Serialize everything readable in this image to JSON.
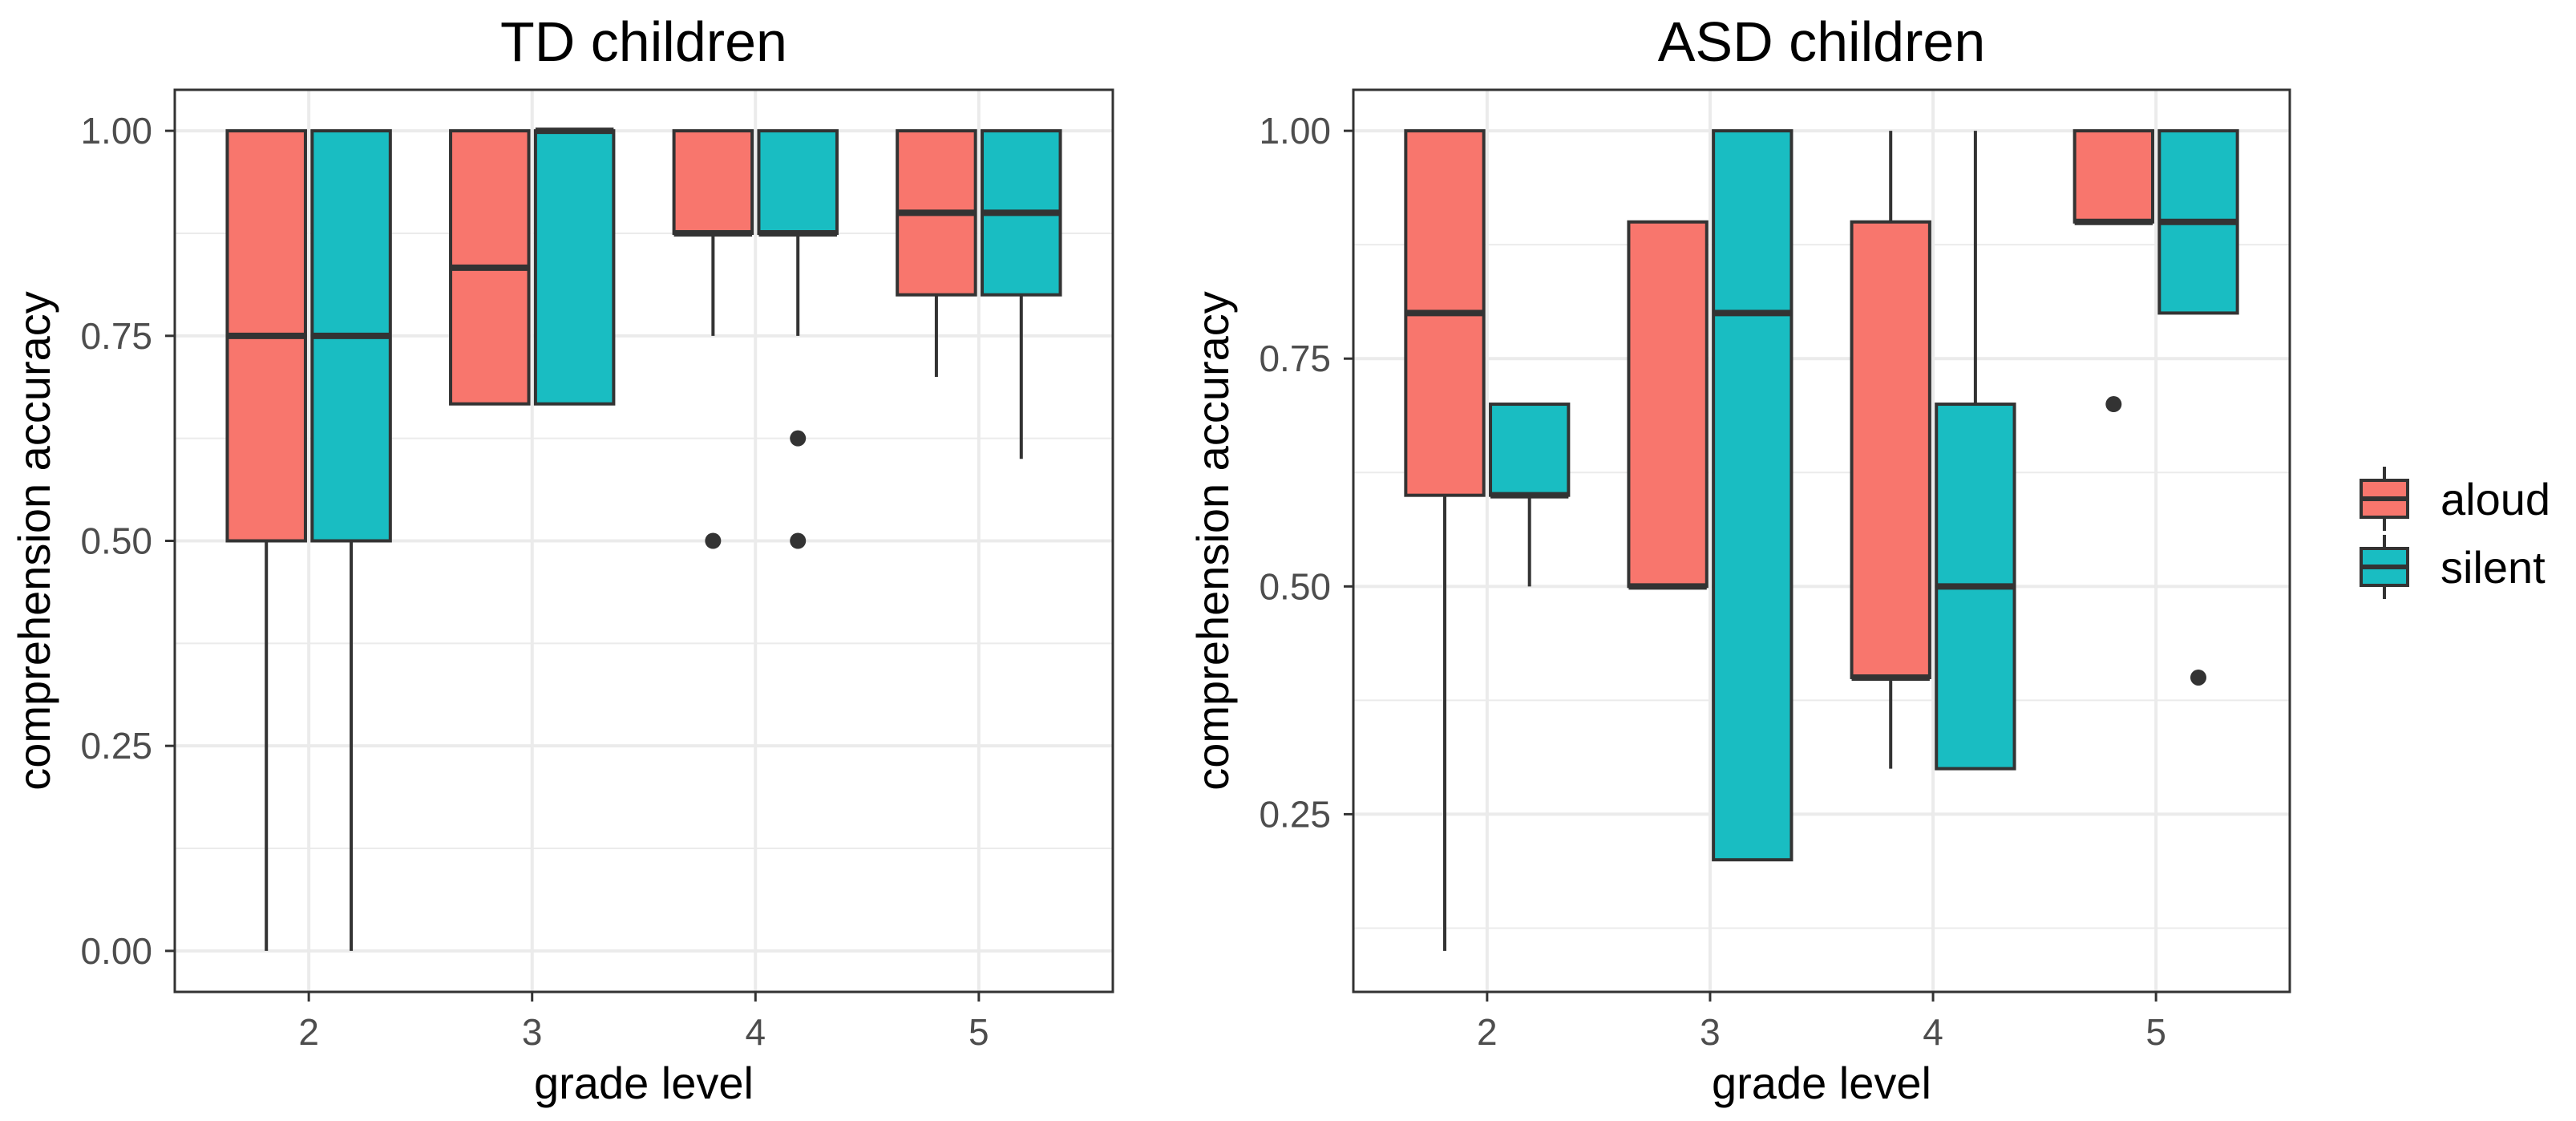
{
  "chart_data": [
    {
      "type": "box",
      "title": "TD children",
      "xlabel": "grade level",
      "ylabel": "comprehension accuracy",
      "categories": [
        "2",
        "3",
        "4",
        "5"
      ],
      "ylim": [
        -0.05,
        1.05
      ],
      "yticks": [
        0.0,
        0.25,
        0.5,
        0.75,
        1.0
      ],
      "ytick_labels": [
        "0.00",
        "0.25",
        "0.50",
        "0.75",
        "1.00"
      ],
      "series": [
        {
          "name": "aloud",
          "color": "#F8766D",
          "boxes": [
            {
              "grade": "2",
              "lower_whisker": 0.0,
              "q1": 0.5,
              "median": 0.75,
              "q3": 1.0,
              "upper_whisker": 1.0,
              "outliers": []
            },
            {
              "grade": "3",
              "lower_whisker": 0.667,
              "q1": 0.667,
              "median": 0.833,
              "q3": 1.0,
              "upper_whisker": 1.0,
              "outliers": []
            },
            {
              "grade": "4",
              "lower_whisker": 0.75,
              "q1": 0.875,
              "median": 0.875,
              "q3": 1.0,
              "upper_whisker": 1.0,
              "outliers": [
                0.5
              ]
            },
            {
              "grade": "5",
              "lower_whisker": 0.7,
              "q1": 0.8,
              "median": 0.9,
              "q3": 1.0,
              "upper_whisker": 1.0,
              "outliers": []
            }
          ]
        },
        {
          "name": "silent",
          "color": "#19BDC2",
          "boxes": [
            {
              "grade": "2",
              "lower_whisker": 0.0,
              "q1": 0.5,
              "median": 0.75,
              "q3": 1.0,
              "upper_whisker": 1.0,
              "outliers": []
            },
            {
              "grade": "3",
              "lower_whisker": 0.667,
              "q1": 0.667,
              "median": 1.0,
              "q3": 1.0,
              "upper_whisker": 1.0,
              "outliers": []
            },
            {
              "grade": "4",
              "lower_whisker": 0.75,
              "q1": 0.875,
              "median": 0.875,
              "q3": 1.0,
              "upper_whisker": 1.0,
              "outliers": [
                0.625,
                0.5
              ]
            },
            {
              "grade": "5",
              "lower_whisker": 0.6,
              "q1": 0.8,
              "median": 0.9,
              "q3": 1.0,
              "upper_whisker": 1.0,
              "outliers": []
            }
          ]
        }
      ]
    },
    {
      "type": "box",
      "title": "ASD children",
      "xlabel": "grade level",
      "ylabel": "comprehension accuracy",
      "categories": [
        "2",
        "3",
        "4",
        "5"
      ],
      "ylim": [
        0.055,
        1.045
      ],
      "yticks": [
        0.25,
        0.5,
        0.75,
        1.0
      ],
      "ytick_labels": [
        "0.25",
        "0.50",
        "0.75",
        "1.00"
      ],
      "series": [
        {
          "name": "aloud",
          "color": "#F8766D",
          "boxes": [
            {
              "grade": "2",
              "lower_whisker": 0.1,
              "q1": 0.6,
              "median": 0.8,
              "q3": 1.0,
              "upper_whisker": 1.0,
              "outliers": []
            },
            {
              "grade": "3",
              "lower_whisker": 0.5,
              "q1": 0.5,
              "median": 0.5,
              "q3": 0.9,
              "upper_whisker": 0.9,
              "outliers": []
            },
            {
              "grade": "4",
              "lower_whisker": 0.3,
              "q1": 0.4,
              "median": 0.4,
              "q3": 0.9,
              "upper_whisker": 1.0,
              "outliers": []
            },
            {
              "grade": "5",
              "lower_whisker": 0.9,
              "q1": 0.9,
              "median": 0.9,
              "q3": 1.0,
              "upper_whisker": 1.0,
              "outliers": [
                0.7
              ]
            }
          ]
        },
        {
          "name": "silent",
          "color": "#19BDC2",
          "boxes": [
            {
              "grade": "2",
              "lower_whisker": 0.5,
              "q1": 0.6,
              "median": 0.6,
              "q3": 0.7,
              "upper_whisker": 0.7,
              "outliers": []
            },
            {
              "grade": "3",
              "lower_whisker": 0.2,
              "q1": 0.2,
              "median": 0.8,
              "q3": 1.0,
              "upper_whisker": 1.0,
              "outliers": []
            },
            {
              "grade": "4",
              "lower_whisker": 0.3,
              "q1": 0.3,
              "median": 0.5,
              "q3": 0.7,
              "upper_whisker": 1.0,
              "outliers": []
            },
            {
              "grade": "5",
              "lower_whisker": 0.8,
              "q1": 0.8,
              "median": 0.9,
              "q3": 1.0,
              "upper_whisker": 1.0,
              "outliers": [
                0.4
              ]
            }
          ]
        }
      ]
    }
  ],
  "legend": {
    "position": "right",
    "items": [
      {
        "label": "aloud",
        "color": "#F8766D"
      },
      {
        "label": "silent",
        "color": "#19BDC2"
      }
    ]
  },
  "colors": {
    "box_stroke": "#333333",
    "grid": "#EBEBEB",
    "panel_border": "#333333"
  }
}
